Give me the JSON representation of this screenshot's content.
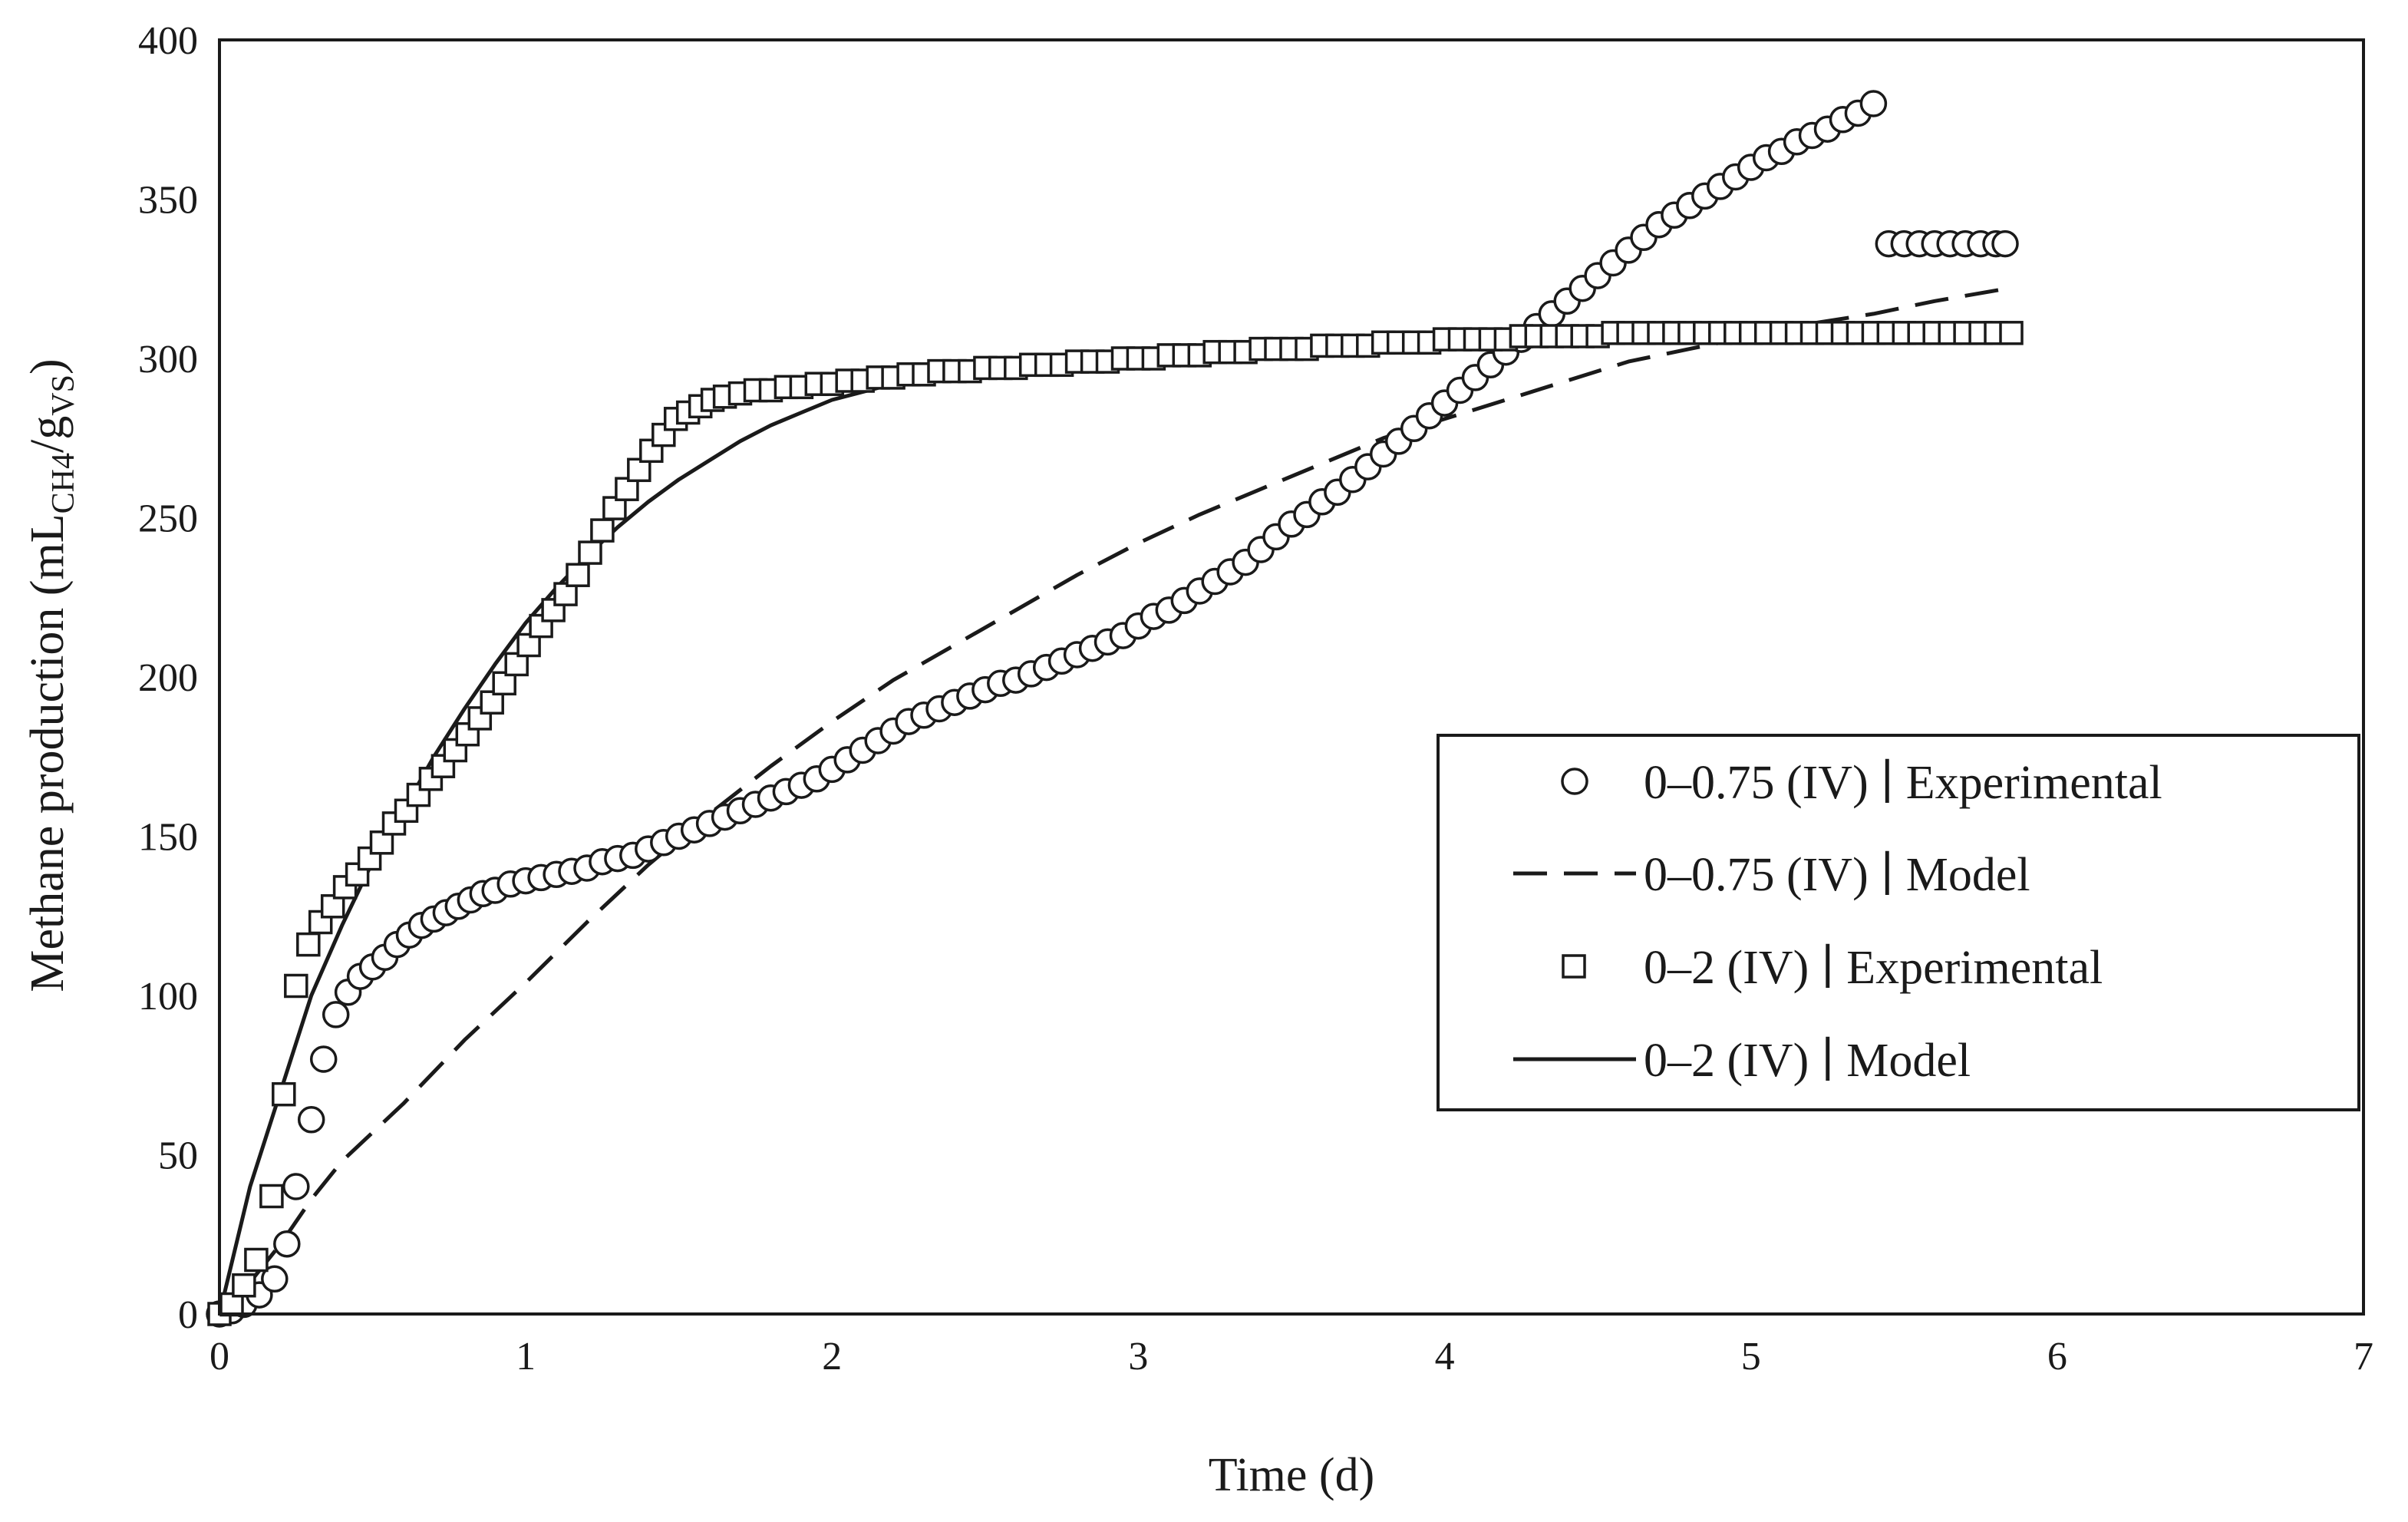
{
  "chart_data": {
    "type": "scatter",
    "title": "",
    "xlabel": "Time (d)",
    "ylabel": {
      "main": "Methane production (mL",
      "sub1": "CH4",
      "mid": "/g",
      "sub2": "VS",
      "end": ")"
    },
    "xlim": [
      0,
      7
    ],
    "ylim": [
      0,
      400
    ],
    "xticks": [
      "0",
      "1",
      "2",
      "3",
      "4",
      "5",
      "6",
      "7"
    ],
    "yticks": [
      "0",
      "50",
      "100",
      "150",
      "200",
      "250",
      "300",
      "350",
      "400"
    ],
    "legend_position": "right-center",
    "series": [
      {
        "name": "0–0.75 (IV) ∣ Experimental",
        "kind": "circle-markers",
        "points": [
          [
            0,
            0
          ],
          [
            0.04,
            1
          ],
          [
            0.08,
            3
          ],
          [
            0.13,
            6
          ],
          [
            0.18,
            11
          ],
          [
            0.22,
            22
          ],
          [
            0.25,
            40
          ],
          [
            0.3,
            61
          ],
          [
            0.34,
            80
          ],
          [
            0.38,
            94
          ],
          [
            0.42,
            101
          ],
          [
            0.46,
            106
          ],
          [
            0.5,
            109
          ],
          [
            0.54,
            112
          ],
          [
            0.58,
            116
          ],
          [
            0.62,
            119
          ],
          [
            0.66,
            122
          ],
          [
            0.7,
            124
          ],
          [
            0.74,
            126
          ],
          [
            0.78,
            128
          ],
          [
            0.82,
            130
          ],
          [
            0.86,
            132
          ],
          [
            0.9,
            133
          ],
          [
            0.95,
            135
          ],
          [
            1.0,
            136
          ],
          [
            1.05,
            137
          ],
          [
            1.1,
            138
          ],
          [
            1.15,
            139
          ],
          [
            1.2,
            140
          ],
          [
            1.25,
            142
          ],
          [
            1.3,
            143
          ],
          [
            1.35,
            144
          ],
          [
            1.4,
            146
          ],
          [
            1.45,
            148
          ],
          [
            1.5,
            150
          ],
          [
            1.55,
            152
          ],
          [
            1.6,
            154
          ],
          [
            1.65,
            156
          ],
          [
            1.7,
            158
          ],
          [
            1.75,
            160
          ],
          [
            1.8,
            162
          ],
          [
            1.85,
            164
          ],
          [
            1.9,
            166
          ],
          [
            1.95,
            168
          ],
          [
            2.0,
            171
          ],
          [
            2.05,
            174
          ],
          [
            2.1,
            177
          ],
          [
            2.15,
            180
          ],
          [
            2.2,
            183
          ],
          [
            2.25,
            186
          ],
          [
            2.3,
            188
          ],
          [
            2.35,
            190
          ],
          [
            2.4,
            192
          ],
          [
            2.45,
            194
          ],
          [
            2.5,
            196
          ],
          [
            2.55,
            198
          ],
          [
            2.6,
            199
          ],
          [
            2.65,
            201
          ],
          [
            2.7,
            203
          ],
          [
            2.75,
            205
          ],
          [
            2.8,
            207
          ],
          [
            2.85,
            209
          ],
          [
            2.9,
            211
          ],
          [
            2.95,
            213
          ],
          [
            3.0,
            216
          ],
          [
            3.05,
            219
          ],
          [
            3.1,
            221
          ],
          [
            3.15,
            224
          ],
          [
            3.2,
            227
          ],
          [
            3.25,
            230
          ],
          [
            3.3,
            233
          ],
          [
            3.35,
            236
          ],
          [
            3.4,
            240
          ],
          [
            3.45,
            244
          ],
          [
            3.5,
            248
          ],
          [
            3.55,
            251
          ],
          [
            3.6,
            255
          ],
          [
            3.65,
            258
          ],
          [
            3.7,
            262
          ],
          [
            3.75,
            266
          ],
          [
            3.8,
            270
          ],
          [
            3.85,
            274
          ],
          [
            3.9,
            278
          ],
          [
            3.95,
            282
          ],
          [
            4.0,
            286
          ],
          [
            4.05,
            290
          ],
          [
            4.1,
            294
          ],
          [
            4.15,
            298
          ],
          [
            4.2,
            302
          ],
          [
            4.25,
            306
          ],
          [
            4.3,
            310
          ],
          [
            4.35,
            314
          ],
          [
            4.4,
            318
          ],
          [
            4.45,
            322
          ],
          [
            4.5,
            326
          ],
          [
            4.55,
            330
          ],
          [
            4.6,
            334
          ],
          [
            4.65,
            338
          ],
          [
            4.7,
            342
          ],
          [
            4.75,
            345
          ],
          [
            4.8,
            348
          ],
          [
            4.85,
            351
          ],
          [
            4.9,
            354
          ],
          [
            4.95,
            357
          ],
          [
            5.0,
            360
          ],
          [
            5.05,
            363
          ],
          [
            5.1,
            365
          ],
          [
            5.15,
            368
          ],
          [
            5.2,
            370
          ],
          [
            5.25,
            372
          ],
          [
            5.3,
            375
          ],
          [
            5.35,
            377
          ],
          [
            5.4,
            380
          ],
          [
            5.45,
            336
          ],
          [
            5.5,
            336
          ],
          [
            5.55,
            336
          ],
          [
            5.6,
            336
          ],
          [
            5.65,
            336
          ],
          [
            5.7,
            336
          ],
          [
            5.75,
            336
          ],
          [
            5.8,
            336
          ],
          [
            5.83,
            336
          ]
        ]
      },
      {
        "name": "0–0.75 (IV) ∣ Model",
        "kind": "dashed-line",
        "points": [
          [
            0,
            0
          ],
          [
            0.1,
            10
          ],
          [
            0.2,
            22
          ],
          [
            0.3,
            36
          ],
          [
            0.4,
            48
          ],
          [
            0.6,
            66
          ],
          [
            0.8,
            86
          ],
          [
            1.0,
            104
          ],
          [
            1.2,
            123
          ],
          [
            1.4,
            141
          ],
          [
            1.6,
            157
          ],
          [
            1.8,
            172
          ],
          [
            2.0,
            186
          ],
          [
            2.2,
            199
          ],
          [
            2.4,
            210
          ],
          [
            2.6,
            221
          ],
          [
            2.8,
            232
          ],
          [
            3.0,
            242
          ],
          [
            3.2,
            251
          ],
          [
            3.4,
            259
          ],
          [
            3.6,
            267
          ],
          [
            3.8,
            275
          ],
          [
            4.0,
            281
          ],
          [
            4.2,
            287
          ],
          [
            4.4,
            293
          ],
          [
            4.6,
            299
          ],
          [
            4.8,
            303
          ],
          [
            5.0,
            307
          ],
          [
            5.2,
            311
          ],
          [
            5.4,
            314
          ],
          [
            5.6,
            318
          ],
          [
            5.84,
            322
          ]
        ]
      },
      {
        "name": "0–2 (IV) ∣ Experimental",
        "kind": "square-markers",
        "points": [
          [
            0,
            0
          ],
          [
            0.04,
            3
          ],
          [
            0.08,
            9
          ],
          [
            0.12,
            17
          ],
          [
            0.17,
            37
          ],
          [
            0.21,
            69
          ],
          [
            0.25,
            103
          ],
          [
            0.29,
            116
          ],
          [
            0.33,
            123
          ],
          [
            0.37,
            128
          ],
          [
            0.41,
            134
          ],
          [
            0.45,
            138
          ],
          [
            0.49,
            143
          ],
          [
            0.53,
            148
          ],
          [
            0.57,
            154
          ],
          [
            0.61,
            158
          ],
          [
            0.65,
            163
          ],
          [
            0.69,
            168
          ],
          [
            0.73,
            172
          ],
          [
            0.77,
            177
          ],
          [
            0.81,
            182
          ],
          [
            0.85,
            187
          ],
          [
            0.89,
            192
          ],
          [
            0.93,
            198
          ],
          [
            0.97,
            204
          ],
          [
            1.01,
            210
          ],
          [
            1.05,
            216
          ],
          [
            1.09,
            221
          ],
          [
            1.13,
            226
          ],
          [
            1.17,
            232
          ],
          [
            1.21,
            239
          ],
          [
            1.25,
            246
          ],
          [
            1.29,
            253
          ],
          [
            1.33,
            259
          ],
          [
            1.37,
            265
          ],
          [
            1.41,
            271
          ],
          [
            1.45,
            276
          ],
          [
            1.49,
            281
          ],
          [
            1.53,
            283
          ],
          [
            1.57,
            285
          ],
          [
            1.61,
            287
          ],
          [
            1.65,
            288
          ],
          [
            1.7,
            289
          ],
          [
            1.75,
            290
          ],
          [
            1.8,
            290
          ],
          [
            1.85,
            291
          ],
          [
            1.9,
            291
          ],
          [
            1.95,
            292
          ],
          [
            2.0,
            292
          ],
          [
            2.05,
            293
          ],
          [
            2.1,
            293
          ],
          [
            2.15,
            294
          ],
          [
            2.2,
            294
          ],
          [
            2.25,
            295
          ],
          [
            2.3,
            295
          ],
          [
            2.35,
            296
          ],
          [
            2.4,
            296
          ],
          [
            2.45,
            296
          ],
          [
            2.5,
            297
          ],
          [
            2.55,
            297
          ],
          [
            2.6,
            297
          ],
          [
            2.65,
            298
          ],
          [
            2.7,
            298
          ],
          [
            2.75,
            298
          ],
          [
            2.8,
            299
          ],
          [
            2.85,
            299
          ],
          [
            2.9,
            299
          ],
          [
            2.95,
            300
          ],
          [
            3.0,
            300
          ],
          [
            3.05,
            300
          ],
          [
            3.1,
            301
          ],
          [
            3.15,
            301
          ],
          [
            3.2,
            301
          ],
          [
            3.25,
            302
          ],
          [
            3.3,
            302
          ],
          [
            3.35,
            302
          ],
          [
            3.4,
            303
          ],
          [
            3.45,
            303
          ],
          [
            3.5,
            303
          ],
          [
            3.55,
            303
          ],
          [
            3.6,
            304
          ],
          [
            3.65,
            304
          ],
          [
            3.7,
            304
          ],
          [
            3.75,
            304
          ],
          [
            3.8,
            305
          ],
          [
            3.85,
            305
          ],
          [
            3.9,
            305
          ],
          [
            3.95,
            305
          ],
          [
            4.0,
            306
          ],
          [
            4.05,
            306
          ],
          [
            4.1,
            306
          ],
          [
            4.15,
            306
          ],
          [
            4.2,
            306
          ],
          [
            4.25,
            307
          ],
          [
            4.3,
            307
          ],
          [
            4.35,
            307
          ],
          [
            4.4,
            307
          ],
          [
            4.45,
            307
          ],
          [
            4.5,
            307
          ],
          [
            4.55,
            308
          ],
          [
            4.6,
            308
          ],
          [
            4.65,
            308
          ],
          [
            4.7,
            308
          ],
          [
            4.75,
            308
          ],
          [
            4.8,
            308
          ],
          [
            4.85,
            308
          ],
          [
            4.9,
            308
          ],
          [
            4.95,
            308
          ],
          [
            5.0,
            308
          ],
          [
            5.05,
            308
          ],
          [
            5.1,
            308
          ],
          [
            5.15,
            308
          ],
          [
            5.2,
            308
          ],
          [
            5.25,
            308
          ],
          [
            5.3,
            308
          ],
          [
            5.35,
            308
          ],
          [
            5.4,
            308
          ],
          [
            5.45,
            308
          ],
          [
            5.5,
            308
          ],
          [
            5.55,
            308
          ],
          [
            5.6,
            308
          ],
          [
            5.65,
            308
          ],
          [
            5.7,
            308
          ],
          [
            5.75,
            308
          ],
          [
            5.8,
            308
          ],
          [
            5.85,
            308
          ]
        ]
      },
      {
        "name": "0–2 (IV) ∣ Model",
        "kind": "solid-line",
        "points": [
          [
            0,
            0
          ],
          [
            0.1,
            40
          ],
          [
            0.2,
            70
          ],
          [
            0.3,
            100
          ],
          [
            0.4,
            122
          ],
          [
            0.5,
            142
          ],
          [
            0.6,
            158
          ],
          [
            0.7,
            175
          ],
          [
            0.8,
            190
          ],
          [
            0.9,
            204
          ],
          [
            1.0,
            217
          ],
          [
            1.1,
            228
          ],
          [
            1.2,
            238
          ],
          [
            1.3,
            247
          ],
          [
            1.4,
            255
          ],
          [
            1.5,
            262
          ],
          [
            1.6,
            268
          ],
          [
            1.7,
            274
          ],
          [
            1.8,
            279
          ],
          [
            1.9,
            283
          ],
          [
            2.0,
            287
          ],
          [
            2.2,
            292
          ],
          [
            2.4,
            295
          ],
          [
            2.6,
            297
          ],
          [
            2.8,
            299
          ],
          [
            3.0,
            300
          ],
          [
            3.2,
            302
          ],
          [
            3.4,
            303
          ],
          [
            3.6,
            304
          ],
          [
            3.8,
            305
          ],
          [
            4.0,
            306
          ],
          [
            4.3,
            306
          ],
          [
            4.6,
            307
          ],
          [
            5.0,
            307
          ],
          [
            5.4,
            308
          ],
          [
            5.85,
            308
          ]
        ]
      }
    ]
  },
  "legend": {
    "items": [
      {
        "text": "0–0.75 (IV) ∣ Experimental"
      },
      {
        "text": "0–0.75 (IV) ∣ Model"
      },
      {
        "text": "0–2 (IV) ∣ Experimental"
      },
      {
        "text": "0–2 (IV) ∣ Model"
      }
    ]
  },
  "colors": {
    "ink": "#1a1a1a",
    "background": "#ffffff"
  }
}
